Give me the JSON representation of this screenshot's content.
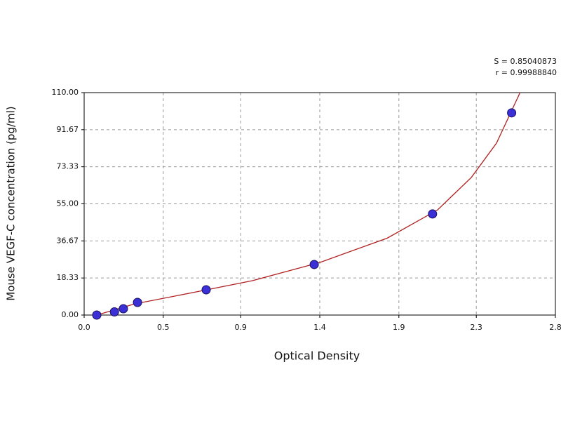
{
  "chart_data": {
    "type": "scatter",
    "xlabel": "Optical Density",
    "ylabel": "Mouse VEGF-C concentration (pg/ml)",
    "annotations": [
      "S = 0.85040873",
      "r = 0.99988840"
    ],
    "series": [
      {
        "color": "#3b30d6",
        "x": [
          0.075,
          0.18,
          0.233,
          0.317,
          0.725,
          1.367,
          2.07,
          2.54
        ],
        "values": [
          0,
          1.56,
          3.12,
          6.25,
          12.5,
          25,
          50,
          100
        ]
      }
    ],
    "fit": {
      "color": "#b02020",
      "x": [
        0.075,
        0.3,
        0.7,
        1.0,
        1.4,
        1.8,
        2.1,
        2.3,
        2.45,
        2.59
      ],
      "values": [
        0,
        5.5,
        12,
        17,
        26,
        38,
        52,
        68,
        85,
        110
      ]
    },
    "xlim": [
      0,
      2.8
    ],
    "xticks": [
      {
        "value": 0,
        "label": "0.0"
      },
      {
        "value": 0.47,
        "label": "0.5"
      },
      {
        "value": 0.93,
        "label": "0.9"
      },
      1.4,
      {
        "value": 1.87,
        "label": "1.9"
      },
      {
        "value": 2.33,
        "label": "2.3"
      },
      2.8
    ],
    "ylim": [
      0,
      110
    ],
    "yticks": [
      {
        "value": 0,
        "label": "0.00"
      },
      18.33,
      36.67,
      {
        "value": 55,
        "label": "55.00"
      },
      73.33,
      91.67,
      {
        "value": 110,
        "label": "110.00"
      }
    ],
    "grid": true
  }
}
